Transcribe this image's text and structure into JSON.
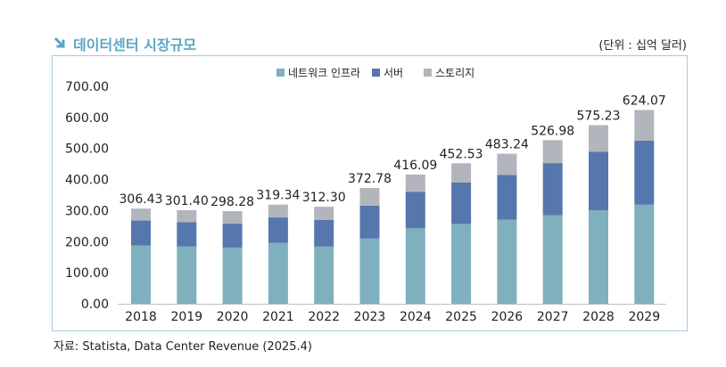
{
  "header": {
    "title": "데이터센터 시장규모",
    "unit_note": "(단위 : 십억 달러)"
  },
  "source": "자료: Statista, Data Center Revenue (2025.4)",
  "colors": {
    "network": "#7fb0bd",
    "server": "#5577ad",
    "storage": "#b3b5bc",
    "title": "#5aa6c4",
    "frame": "#9fd0de"
  },
  "chart_data": {
    "type": "bar",
    "stacked": true,
    "categories": [
      "2018",
      "2019",
      "2020",
      "2021",
      "2022",
      "2023",
      "2024",
      "2025",
      "2026",
      "2027",
      "2028",
      "2029"
    ],
    "series": [
      {
        "name": "네트워크 인프라",
        "values": [
          188,
          185,
          181,
          196,
          185,
          210,
          243,
          257,
          271,
          285,
          301,
          319
        ]
      },
      {
        "name": "서버",
        "values": [
          80,
          78,
          77,
          82,
          85,
          106,
          118,
          134,
          144,
          168,
          189,
          206
        ]
      },
      {
        "name": "스토리지",
        "values": [
          38.43,
          38.4,
          40.28,
          41.34,
          42.3,
          56.78,
          55.09,
          61.53,
          68.24,
          73.98,
          85.23,
          99.07
        ]
      }
    ],
    "totals": [
      "306.43",
      "301.40",
      "298.28",
      "319.34",
      "312.30",
      "372.78",
      "416.09",
      "452.53",
      "483.24",
      "526.98",
      "575.23",
      "624.07"
    ],
    "y_ticks": [
      "0.00",
      "100.00",
      "200.00",
      "300.00",
      "400.00",
      "500.00",
      "600.00",
      "700.00"
    ],
    "ylim": [
      0,
      700
    ],
    "legend_position": "top-center",
    "grid": false
  }
}
